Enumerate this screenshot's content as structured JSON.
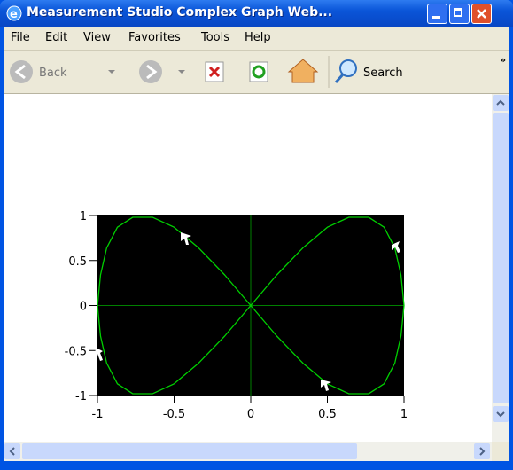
{
  "window": {
    "title": "Measurement Studio Complex Graph Web...",
    "menu": [
      "File",
      "Edit",
      "View",
      "Favorites",
      "Tools",
      "Help"
    ],
    "toolbar": {
      "back": "Back",
      "search": "Search"
    }
  },
  "chart_data": {
    "type": "line",
    "x": [
      0,
      0.17,
      0.34,
      0.5,
      0.64,
      0.77,
      0.87,
      0.94,
      0.98,
      1,
      0.98,
      0.94,
      0.87,
      0.77,
      0.64,
      0.5,
      0.34,
      0.17,
      0,
      -0.17,
      -0.34,
      -0.5,
      -0.64,
      -0.77,
      -0.87,
      -0.94,
      -0.98,
      -1,
      -0.98,
      -0.94,
      -0.87,
      -0.77,
      -0.64,
      -0.5,
      -0.34,
      -0.17,
      0
    ],
    "series": [
      {
        "color": "#00d000",
        "values": [
          0,
          0.34,
          0.64,
          0.87,
          0.98,
          0.98,
          0.87,
          0.64,
          0.34,
          0,
          -0.34,
          -0.64,
          -0.87,
          -0.98,
          -0.98,
          -0.87,
          -0.64,
          -0.34,
          0,
          0.34,
          0.64,
          0.87,
          0.98,
          0.98,
          0.87,
          0.64,
          0.34,
          0,
          -0.34,
          -0.64,
          -0.87,
          -0.98,
          -0.98,
          -0.87,
          -0.64,
          -0.34,
          0
        ]
      }
    ],
    "xlim": [
      -1,
      1
    ],
    "ylim": [
      -1,
      1
    ],
    "xticks": [
      -1,
      -0.5,
      0,
      0.5,
      1
    ],
    "yticks": [
      -1,
      -0.5,
      0,
      0.5,
      1
    ],
    "background": "#000000",
    "zero_lines": true
  }
}
